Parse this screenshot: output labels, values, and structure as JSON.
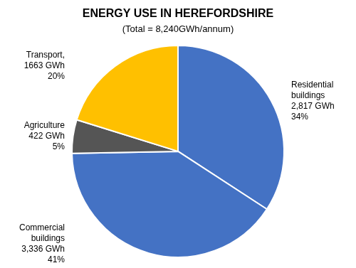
{
  "chart_data": {
    "type": "pie",
    "title": "ENERGY USE IN HEREFORDSHIRE",
    "subtitle": "(Total = 8,240GWh/annum)",
    "categories": [
      "Residential\nbuildings\n2,817 GWh\n34%",
      "Commercial\nbuildings\n3,336 GWh\n41%",
      "Agriculture\n422 GWh\n5%",
      "Transport,\n1663 GWh\n20%"
    ],
    "values": [
      2817,
      3336,
      422,
      1663
    ],
    "colors": [
      "#4472C4",
      "#4472C4",
      "#555555",
      "#FFC000"
    ],
    "legend": false
  }
}
